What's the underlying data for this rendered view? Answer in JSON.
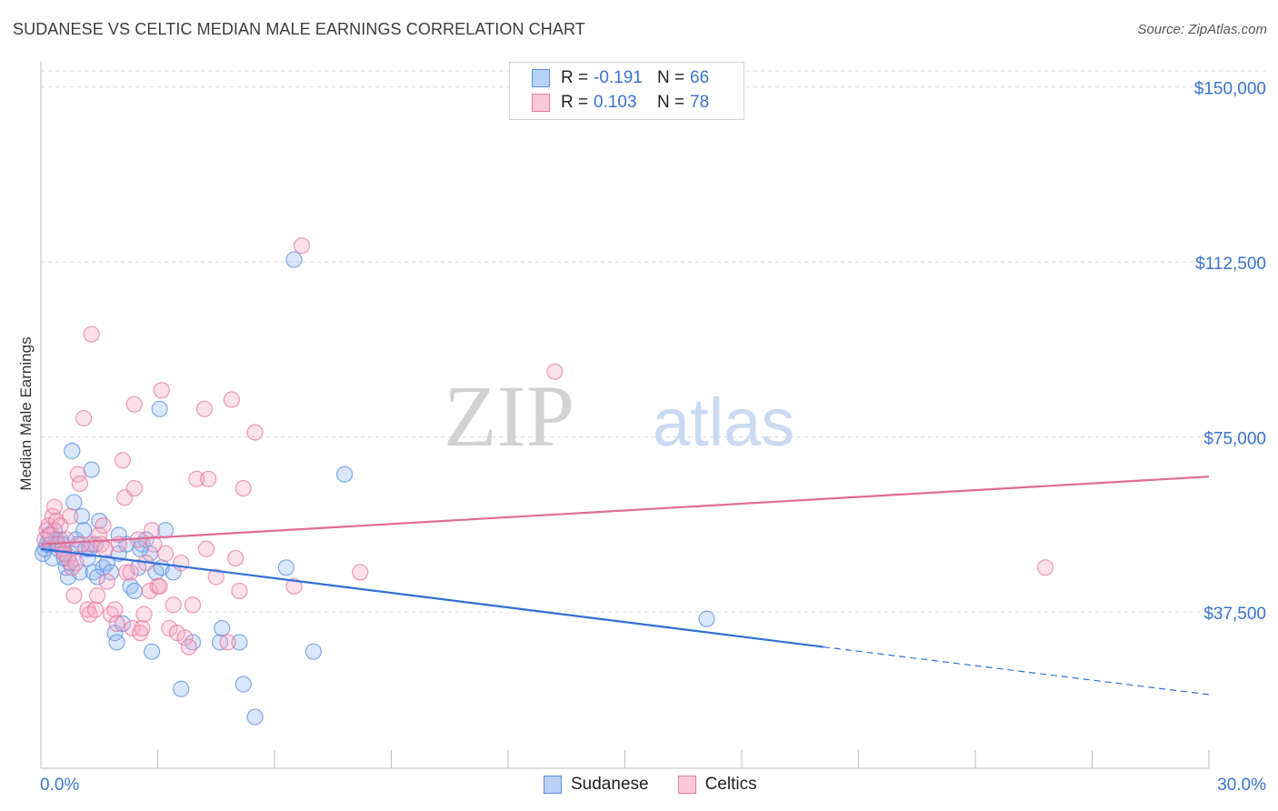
{
  "chart_data": {
    "type": "scatter",
    "title": "SUDANESE VS CELTIC MEDIAN MALE EARNINGS CORRELATION CHART",
    "source": "Source: ZipAtlas.com",
    "xlabel": "",
    "ylabel": "Median Male Earnings",
    "xlim": [
      0,
      30
    ],
    "ylim": [
      4000,
      155000
    ],
    "x_tick_labels": [
      "0.0%",
      "30.0%"
    ],
    "y_ticks": [
      {
        "value": 150000,
        "label": "$150,000"
      },
      {
        "value": 112500,
        "label": "$112,500"
      },
      {
        "value": 75000,
        "label": "$75,000"
      },
      {
        "value": 37500,
        "label": "$37,500"
      }
    ],
    "watermark": {
      "zip": "ZIP",
      "atlas": "atlas"
    },
    "legend": {
      "r_label": "R =",
      "n_label": "N =",
      "entries": [
        {
          "name": "Sudanese",
          "r": "-0.191",
          "n": "66",
          "color": "#5b8fe0",
          "fill": "#b9d1f7"
        },
        {
          "name": "Celtics",
          "r": "0.103",
          "n": "78",
          "color": "#e87aa0",
          "fill": "#f9c9d9"
        }
      ]
    },
    "series": [
      {
        "name": "Sudanese",
        "color": "#5b8fe0",
        "fill": "rgba(150,185,240,0.35)",
        "trend": {
          "x0": 0,
          "y0": 51000,
          "x1": 20.1,
          "y1": 30000,
          "dash_to_x": 30,
          "dash_to_y": 19800,
          "color": "#2f6fd6"
        },
        "points": [
          [
            0.05,
            50000
          ],
          [
            0.1,
            51000
          ],
          [
            0.15,
            52000
          ],
          [
            0.2,
            54000
          ],
          [
            0.25,
            52000
          ],
          [
            0.3,
            49000
          ],
          [
            0.35,
            55000
          ],
          [
            0.4,
            53000
          ],
          [
            0.45,
            51000
          ],
          [
            0.5,
            53000
          ],
          [
            0.55,
            52000
          ],
          [
            0.6,
            50000
          ],
          [
            0.65,
            47000
          ],
          [
            0.7,
            45000
          ],
          [
            0.75,
            48000
          ],
          [
            0.8,
            72000
          ],
          [
            0.85,
            61000
          ],
          [
            0.9,
            53000
          ],
          [
            0.95,
            52000
          ],
          [
            1.0,
            46000
          ],
          [
            1.05,
            58000
          ],
          [
            1.1,
            55000
          ],
          [
            1.15,
            51000
          ],
          [
            1.2,
            49000
          ],
          [
            1.3,
            68000
          ],
          [
            1.35,
            46000
          ],
          [
            1.4,
            52000
          ],
          [
            1.5,
            57000
          ],
          [
            1.6,
            47000
          ],
          [
            1.7,
            48000
          ],
          [
            1.8,
            46000
          ],
          [
            1.9,
            33000
          ],
          [
            1.95,
            31000
          ],
          [
            2.0,
            50000
          ],
          [
            2.1,
            35000
          ],
          [
            2.2,
            52000
          ],
          [
            2.3,
            43000
          ],
          [
            2.4,
            42000
          ],
          [
            2.5,
            47000
          ],
          [
            2.6,
            52000
          ],
          [
            2.7,
            53000
          ],
          [
            2.8,
            50000
          ],
          [
            2.85,
            29000
          ],
          [
            2.95,
            46000
          ],
          [
            3.05,
            81000
          ],
          [
            3.1,
            47000
          ],
          [
            3.2,
            55000
          ],
          [
            3.4,
            46000
          ],
          [
            3.6,
            21000
          ],
          [
            3.9,
            31000
          ],
          [
            4.6,
            31000
          ],
          [
            4.65,
            34000
          ],
          [
            5.1,
            31000
          ],
          [
            5.2,
            22000
          ],
          [
            5.5,
            15000
          ],
          [
            6.3,
            47000
          ],
          [
            6.5,
            113000
          ],
          [
            7.0,
            29000
          ],
          [
            7.8,
            67000
          ],
          [
            17.1,
            36000
          ],
          [
            0.6,
            49000
          ],
          [
            1.25,
            51000
          ],
          [
            2.0,
            54000
          ],
          [
            0.4,
            52000
          ],
          [
            2.55,
            51000
          ],
          [
            1.45,
            45000
          ]
        ]
      },
      {
        "name": "Celtics",
        "color": "#e87aa0",
        "fill": "rgba(245,170,195,0.35)",
        "trend": {
          "x0": 0,
          "y0": 52000,
          "x1": 30,
          "y1": 66500,
          "color": "#e06b96"
        },
        "points": [
          [
            0.1,
            53000
          ],
          [
            0.15,
            55000
          ],
          [
            0.2,
            56000
          ],
          [
            0.25,
            54000
          ],
          [
            0.3,
            58000
          ],
          [
            0.35,
            60000
          ],
          [
            0.4,
            57000
          ],
          [
            0.45,
            52000
          ],
          [
            0.5,
            56000
          ],
          [
            0.55,
            51000
          ],
          [
            0.6,
            50000
          ],
          [
            0.65,
            53000
          ],
          [
            0.7,
            49000
          ],
          [
            0.75,
            58000
          ],
          [
            0.8,
            47000
          ],
          [
            0.85,
            41000
          ],
          [
            0.95,
            67000
          ],
          [
            1.0,
            65000
          ],
          [
            1.1,
            79000
          ],
          [
            1.2,
            38000
          ],
          [
            1.25,
            37000
          ],
          [
            1.3,
            52000
          ],
          [
            1.4,
            38000
          ],
          [
            1.45,
            41000
          ],
          [
            1.5,
            54000
          ],
          [
            1.55,
            52000
          ],
          [
            1.6,
            56000
          ],
          [
            1.7,
            44000
          ],
          [
            1.8,
            37000
          ],
          [
            1.9,
            38000
          ],
          [
            1.95,
            35000
          ],
          [
            2.0,
            52000
          ],
          [
            2.1,
            70000
          ],
          [
            2.15,
            62000
          ],
          [
            2.2,
            46000
          ],
          [
            2.3,
            46000
          ],
          [
            2.35,
            34000
          ],
          [
            2.4,
            82000
          ],
          [
            2.5,
            53000
          ],
          [
            2.55,
            33000
          ],
          [
            2.6,
            34000
          ],
          [
            2.7,
            48000
          ],
          [
            2.8,
            42000
          ],
          [
            2.85,
            55000
          ],
          [
            2.9,
            52000
          ],
          [
            3.0,
            43000
          ],
          [
            3.1,
            85000
          ],
          [
            3.2,
            50000
          ],
          [
            3.3,
            34000
          ],
          [
            3.4,
            39000
          ],
          [
            3.5,
            33000
          ],
          [
            3.6,
            48000
          ],
          [
            3.7,
            32000
          ],
          [
            3.8,
            30000
          ],
          [
            3.9,
            39000
          ],
          [
            4.0,
            66000
          ],
          [
            4.2,
            81000
          ],
          [
            4.25,
            51000
          ],
          [
            4.3,
            66000
          ],
          [
            4.5,
            45000
          ],
          [
            4.8,
            31000
          ],
          [
            4.9,
            83000
          ],
          [
            5.0,
            49000
          ],
          [
            5.1,
            42000
          ],
          [
            5.2,
            64000
          ],
          [
            5.5,
            76000
          ],
          [
            6.5,
            43000
          ],
          [
            6.7,
            116000
          ],
          [
            8.2,
            46000
          ],
          [
            13.2,
            89000
          ],
          [
            25.8,
            47000
          ],
          [
            1.3,
            97000
          ],
          [
            2.4,
            64000
          ],
          [
            3.05,
            43000
          ],
          [
            1.05,
            52000
          ],
          [
            0.9,
            48000
          ],
          [
            2.65,
            37000
          ],
          [
            1.65,
            51000
          ]
        ]
      }
    ]
  }
}
